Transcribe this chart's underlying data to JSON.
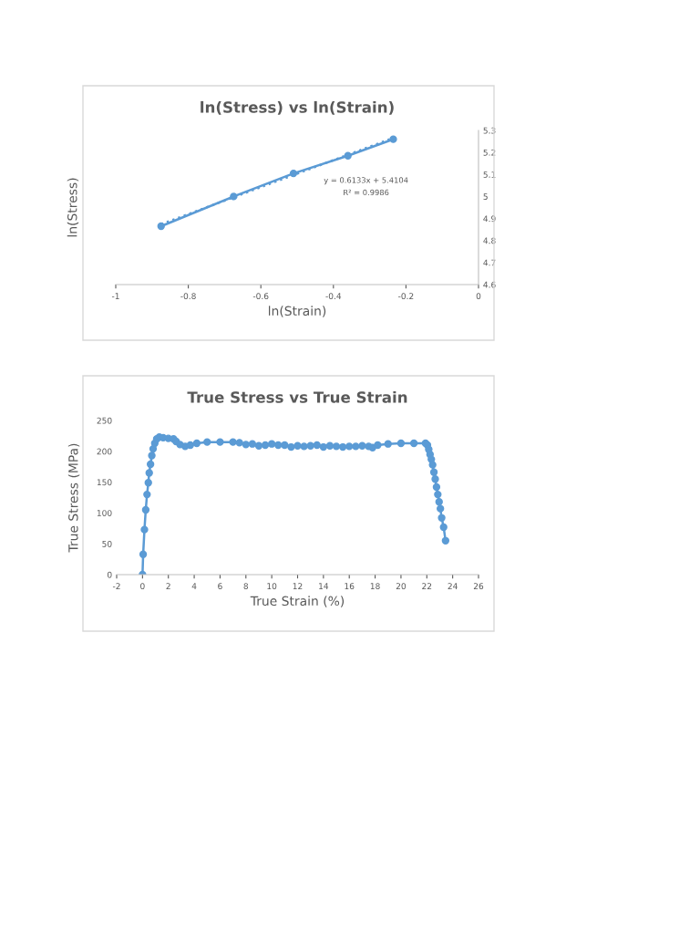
{
  "chart_data": [
    {
      "type": "line",
      "title": "ln(Stress) vs ln(Strain)",
      "xlabel": "ln(Strain)",
      "ylabel": "ln(Stress)",
      "xlim": [
        -1,
        0
      ],
      "xticks": [
        -1,
        -0.8,
        -0.6,
        -0.4,
        -0.2,
        0
      ],
      "ylim": [
        4.6,
        5.3
      ],
      "yticks": [
        4.6,
        4.7,
        4.8,
        4.9,
        5,
        5.1,
        5.2,
        5.3
      ],
      "grid": false,
      "legend": false,
      "marker": "circle",
      "line_style": "solid",
      "series": [
        {
          "color": "#5b9bd5",
          "x": [
            -0.875,
            -0.675,
            -0.51,
            -0.36,
            -0.235
          ],
          "values": [
            4.865,
            5.0,
            5.105,
            5.185,
            5.26
          ]
        },
        {
          "type": "line",
          "color": "#5b9bd5",
          "marker": "none",
          "line_style": "dotted",
          "x": [
            -0.875,
            -0.235
          ],
          "values": [
            4.874,
            5.266
          ]
        }
      ],
      "annotations": [
        "y = 0.6133x + 5.4104",
        "R² = 0.9986"
      ]
    },
    {
      "type": "line",
      "title": "True Stress vs True Strain",
      "xlabel": "True Strain (%)",
      "ylabel": "True Stress (MPa)",
      "xlim": [
        -2,
        26
      ],
      "xticks": [
        -2,
        0,
        2,
        4,
        6,
        8,
        10,
        12,
        14,
        16,
        18,
        20,
        22,
        24,
        26
      ],
      "ylim": [
        0,
        250
      ],
      "yticks": [
        0,
        50,
        100,
        150,
        200,
        250
      ],
      "grid": false,
      "legend": false,
      "marker": "circle",
      "line_style": "solid",
      "series": [
        {
          "color": "#5b9bd5",
          "x": [
            0,
            0.05,
            0.15,
            0.25,
            0.35,
            0.45,
            0.52,
            0.62,
            0.72,
            0.82,
            0.95,
            1.1,
            1.3,
            1.6,
            2.0,
            2.4,
            2.6,
            2.9,
            3.3,
            3.7,
            4.2,
            5,
            6,
            7,
            7.5,
            8,
            8.5,
            9,
            9.5,
            10,
            10.5,
            11,
            11.5,
            12,
            12.5,
            13,
            13.5,
            14,
            14.5,
            15,
            15.5,
            16,
            16.5,
            17,
            17.5,
            17.8,
            18.2,
            19,
            20,
            21,
            21.9,
            22.05,
            22.15,
            22.25,
            22.35,
            22.45,
            22.55,
            22.65,
            22.75,
            22.85,
            22.95,
            23.05,
            23.15,
            23.3,
            23.45
          ],
          "values": [
            0,
            33,
            73,
            105,
            130,
            149,
            165,
            179,
            193,
            204,
            213,
            220,
            223,
            222,
            221,
            220,
            216,
            211,
            208,
            210,
            213,
            215,
            215,
            215,
            214,
            211,
            212,
            209,
            210,
            212,
            210,
            210,
            207,
            209,
            208,
            209,
            210,
            207,
            209,
            208,
            207,
            208,
            208,
            209,
            208,
            206,
            210,
            212,
            213,
            213,
            213,
            210,
            203,
            195,
            187,
            178,
            166,
            155,
            142,
            130,
            118,
            107,
            92,
            77,
            55
          ]
        }
      ]
    }
  ]
}
